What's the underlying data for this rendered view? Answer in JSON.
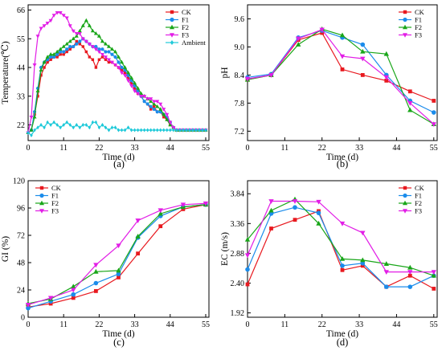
{
  "chart_data": [
    {
      "type": "line",
      "panel_label": "(a)",
      "xlabel": "Time (d)",
      "ylabel": "Temperature(℃)",
      "xlim": [
        0,
        56
      ],
      "ylim": [
        16,
        68
      ],
      "xticks": [
        0,
        11,
        22,
        33,
        44,
        55
      ],
      "yticks": [
        22,
        33,
        44,
        55,
        66
      ],
      "legend": "top-right",
      "series": [
        {
          "name": "CK",
          "color": "#e8191f",
          "marker": "square",
          "x": [
            0,
            1,
            2,
            3,
            4,
            5,
            6,
            7,
            8,
            9,
            10,
            11,
            12,
            13,
            14,
            15,
            16,
            17,
            18,
            19,
            20,
            21,
            22,
            23,
            24,
            25,
            26,
            27,
            28,
            29,
            30,
            31,
            32,
            33,
            34,
            35,
            36,
            37,
            38,
            39,
            40,
            41,
            42,
            43,
            44,
            45,
            46,
            47,
            48,
            49,
            50,
            51,
            52,
            53,
            54,
            55
          ],
          "y": [
            19,
            20,
            26,
            33,
            41,
            44,
            46,
            47,
            48,
            48,
            49,
            49,
            50,
            51,
            52,
            54,
            53,
            52,
            50,
            48,
            47,
            44,
            47,
            48,
            47,
            46,
            46,
            45,
            44,
            43,
            42,
            40,
            38,
            36,
            34,
            33,
            31,
            30,
            28,
            29,
            27,
            27,
            25,
            24,
            22,
            21,
            20,
            20,
            20,
            20,
            20,
            20,
            20,
            20,
            20,
            20
          ]
        },
        {
          "name": "F1",
          "color": "#1b8ceb",
          "marker": "circle",
          "x": [
            0,
            1,
            2,
            3,
            4,
            5,
            6,
            7,
            8,
            9,
            10,
            11,
            12,
            13,
            14,
            15,
            16,
            17,
            18,
            19,
            20,
            21,
            22,
            23,
            24,
            25,
            26,
            27,
            28,
            29,
            30,
            31,
            32,
            33,
            34,
            35,
            36,
            37,
            38,
            39,
            40,
            41,
            42,
            43,
            44,
            45,
            46,
            47,
            48,
            49,
            50,
            51,
            52,
            53,
            54,
            55
          ],
          "y": [
            19,
            20,
            27,
            36,
            44,
            46,
            47,
            48,
            48,
            49,
            50,
            50,
            51,
            52,
            52,
            53,
            54,
            55,
            54,
            53,
            52,
            52,
            51,
            51,
            50,
            50,
            49,
            48,
            46,
            44,
            43,
            41,
            39,
            37,
            35,
            33,
            31,
            30,
            29,
            28,
            27,
            27,
            26,
            25,
            23,
            21,
            20,
            20,
            20,
            20,
            20,
            20,
            20,
            20,
            20,
            20
          ]
        },
        {
          "name": "F2",
          "color": "#19a619",
          "marker": "triangle",
          "x": [
            0,
            1,
            2,
            3,
            4,
            5,
            6,
            7,
            8,
            9,
            10,
            11,
            12,
            13,
            14,
            15,
            16,
            17,
            18,
            19,
            20,
            21,
            22,
            23,
            24,
            25,
            26,
            27,
            28,
            29,
            30,
            31,
            32,
            33,
            34,
            35,
            36,
            37,
            38,
            39,
            40,
            41,
            42,
            43,
            44,
            45,
            46,
            47,
            48,
            49,
            50,
            51,
            52,
            53,
            54,
            55
          ],
          "y": [
            19,
            20,
            25,
            35,
            43,
            46,
            48,
            49,
            49,
            50,
            51,
            52,
            53,
            54,
            55,
            56,
            58,
            60,
            62,
            60,
            58,
            57,
            56,
            54,
            53,
            52,
            51,
            50,
            48,
            46,
            44,
            42,
            40,
            38,
            36,
            34,
            33,
            32,
            31,
            30,
            29,
            28,
            26,
            24,
            22,
            21,
            20,
            20,
            20,
            20,
            20,
            20,
            20,
            20,
            20,
            20
          ]
        },
        {
          "name": "F3",
          "color": "#e21ee6",
          "marker": "triangle-down",
          "x": [
            0,
            1,
            2,
            3,
            4,
            5,
            6,
            7,
            8,
            9,
            10,
            11,
            12,
            13,
            14,
            15,
            16,
            17,
            18,
            19,
            20,
            21,
            22,
            23,
            24,
            25,
            26,
            27,
            28,
            29,
            30,
            31,
            32,
            33,
            34,
            35,
            36,
            37,
            38,
            39,
            40,
            41,
            42,
            43,
            44,
            45,
            46,
            47,
            48,
            49,
            50,
            51,
            52,
            53,
            54,
            55
          ],
          "y": [
            19,
            25,
            45,
            56,
            59,
            60,
            61,
            62,
            64,
            65,
            65,
            64,
            63,
            60,
            58,
            57,
            57,
            55,
            54,
            53,
            52,
            51,
            50,
            49,
            48,
            47,
            46,
            45,
            44,
            42,
            41,
            39,
            37,
            35,
            34,
            33,
            33,
            32,
            32,
            31,
            31,
            30,
            28,
            26,
            23,
            21,
            20,
            20,
            20,
            20,
            20,
            20,
            20,
            20,
            20,
            20
          ]
        },
        {
          "name": "Ambient",
          "color": "#1ec9d9",
          "marker": "diamond",
          "x": [
            0,
            1,
            2,
            3,
            4,
            5,
            6,
            7,
            8,
            9,
            10,
            11,
            12,
            13,
            14,
            15,
            16,
            17,
            18,
            19,
            20,
            21,
            22,
            23,
            24,
            25,
            26,
            27,
            28,
            29,
            30,
            31,
            32,
            33,
            34,
            35,
            36,
            37,
            38,
            39,
            40,
            41,
            42,
            43,
            44,
            45,
            46,
            47,
            48,
            49,
            50,
            51,
            52,
            53,
            54,
            55
          ],
          "y": [
            19,
            18,
            20,
            21,
            22,
            21,
            23,
            22,
            23,
            22,
            21,
            22,
            23,
            22,
            21,
            22,
            21,
            22,
            22,
            21,
            23,
            23,
            21,
            22,
            21,
            20,
            21,
            21,
            20,
            20,
            20,
            21,
            20,
            20,
            20,
            20,
            20,
            20,
            20,
            20,
            20,
            20,
            20,
            20,
            20,
            20,
            20,
            20,
            20,
            20,
            20,
            20,
            20,
            20,
            20,
            20
          ]
        }
      ]
    },
    {
      "type": "line",
      "panel_label": "(b)",
      "xlabel": "Time (d)",
      "ylabel": "pH",
      "xlim": [
        0,
        56
      ],
      "ylim": [
        7.0,
        9.9
      ],
      "xticks": [
        0,
        11,
        22,
        33,
        44,
        55
      ],
      "yticks": [
        7.2,
        7.8,
        8.4,
        9.0,
        9.6
      ],
      "legend": "top-right",
      "series": [
        {
          "name": "CK",
          "color": "#e8191f",
          "marker": "square",
          "x": [
            0,
            7,
            15,
            22,
            28,
            34,
            41,
            48,
            55
          ],
          "y": [
            8.3,
            8.4,
            9.15,
            9.3,
            8.52,
            8.4,
            8.28,
            8.05,
            7.85
          ]
        },
        {
          "name": "F1",
          "color": "#1b8ceb",
          "marker": "circle",
          "x": [
            0,
            7,
            15,
            22,
            28,
            34,
            41,
            48,
            55
          ],
          "y": [
            8.35,
            8.42,
            9.2,
            9.35,
            9.2,
            9.05,
            8.4,
            7.85,
            7.6
          ]
        },
        {
          "name": "F2",
          "color": "#19a619",
          "marker": "triangle",
          "x": [
            0,
            7,
            15,
            22,
            28,
            34,
            41,
            48,
            55
          ],
          "y": [
            8.3,
            8.4,
            9.05,
            9.38,
            9.25,
            8.9,
            8.85,
            7.65,
            7.35
          ]
        },
        {
          "name": "F3",
          "color": "#e21ee6",
          "marker": "triangle-down",
          "x": [
            0,
            7,
            15,
            22,
            28,
            34,
            41,
            48,
            55
          ],
          "y": [
            8.32,
            8.4,
            9.18,
            9.37,
            8.8,
            8.75,
            8.35,
            7.8,
            7.35
          ]
        }
      ]
    },
    {
      "type": "line",
      "panel_label": "(c)",
      "xlabel": "Time (d)",
      "ylabel": "GI (%)",
      "xlim": [
        0,
        56
      ],
      "ylim": [
        0,
        120
      ],
      "xticks": [
        0,
        11,
        22,
        33,
        44,
        55
      ],
      "yticks": [
        0,
        24,
        48,
        72,
        96,
        120
      ],
      "legend": "top-left",
      "series": [
        {
          "name": "CK",
          "color": "#e8191f",
          "marker": "square",
          "x": [
            0,
            7,
            14,
            21,
            28,
            34,
            41,
            48,
            55
          ],
          "y": [
            9,
            12,
            17,
            23,
            35,
            56,
            80,
            95,
            99
          ]
        },
        {
          "name": "F1",
          "color": "#1b8ceb",
          "marker": "circle",
          "x": [
            0,
            7,
            14,
            21,
            28,
            34,
            41,
            48,
            55
          ],
          "y": [
            8,
            14,
            20,
            30,
            38,
            70,
            89,
            97,
            99
          ]
        },
        {
          "name": "F2",
          "color": "#19a619",
          "marker": "triangle",
          "x": [
            0,
            7,
            14,
            21,
            28,
            34,
            41,
            48,
            55
          ],
          "y": [
            12,
            16,
            27,
            40,
            41,
            71,
            91,
            97,
            99
          ]
        },
        {
          "name": "F3",
          "color": "#e21ee6",
          "marker": "triangle-down",
          "x": [
            0,
            7,
            14,
            21,
            28,
            34,
            41,
            48,
            55
          ],
          "y": [
            11,
            17,
            24,
            46,
            63,
            85,
            94,
            99,
            100
          ]
        }
      ]
    },
    {
      "type": "line",
      "panel_label": "(d)",
      "xlabel": "Time (d)",
      "ylabel": "EC (m/s)",
      "xlim": [
        0,
        56
      ],
      "ylim": [
        1.85,
        4.05
      ],
      "xticks": [
        0,
        11,
        22,
        33,
        44,
        55
      ],
      "yticks": [
        1.92,
        2.4,
        2.88,
        3.36,
        3.84
      ],
      "legend": "top-right",
      "series": [
        {
          "name": "CK",
          "color": "#e8191f",
          "marker": "square",
          "x": [
            0,
            7,
            14,
            21,
            28,
            34,
            41,
            48,
            55
          ],
          "y": [
            2.38,
            3.28,
            3.42,
            3.56,
            2.61,
            2.68,
            2.34,
            2.52,
            2.31
          ]
        },
        {
          "name": "F1",
          "color": "#1b8ceb",
          "marker": "circle",
          "x": [
            0,
            7,
            14,
            21,
            28,
            34,
            41,
            48,
            55
          ],
          "y": [
            2.62,
            3.52,
            3.62,
            3.53,
            2.68,
            2.72,
            2.34,
            2.34,
            2.52
          ]
        },
        {
          "name": "F2",
          "color": "#19a619",
          "marker": "triangle",
          "x": [
            0,
            7,
            14,
            21,
            28,
            34,
            41,
            48,
            55
          ],
          "y": [
            3.1,
            3.57,
            3.75,
            3.36,
            2.79,
            2.77,
            2.71,
            2.65,
            2.52
          ]
        },
        {
          "name": "F3",
          "color": "#e21ee6",
          "marker": "triangle-down",
          "x": [
            0,
            7,
            14,
            21,
            28,
            34,
            41,
            48,
            55
          ],
          "y": [
            2.85,
            3.72,
            3.72,
            3.71,
            3.36,
            3.21,
            2.58,
            2.58,
            2.58
          ]
        }
      ]
    }
  ]
}
